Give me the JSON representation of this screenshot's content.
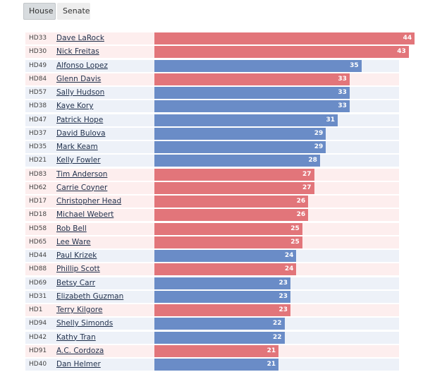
{
  "tabs": {
    "house": "House",
    "senate": "Senate",
    "active": "house"
  },
  "colors": {
    "republican": "#e2757a",
    "democrat": "#6a8cc7",
    "republican_row": "#fdeeee",
    "democrat_row": "#edf1f8"
  },
  "chart_data": {
    "type": "bar",
    "orientation": "horizontal",
    "title": "",
    "xlim": [
      0,
      45
    ],
    "series": [
      {
        "district": "HD33",
        "name": "Dave LaRock",
        "value": 44,
        "party": "R"
      },
      {
        "district": "HD30",
        "name": "Nick Freitas",
        "value": 43,
        "party": "R"
      },
      {
        "district": "HD49",
        "name": "Alfonso Lopez",
        "value": 35,
        "party": "D"
      },
      {
        "district": "HD84",
        "name": "Glenn Davis",
        "value": 33,
        "party": "R"
      },
      {
        "district": "HD57",
        "name": "Sally Hudson",
        "value": 33,
        "party": "D"
      },
      {
        "district": "HD38",
        "name": "Kaye Kory",
        "value": 33,
        "party": "D"
      },
      {
        "district": "HD47",
        "name": "Patrick Hope",
        "value": 31,
        "party": "D"
      },
      {
        "district": "HD37",
        "name": "David Bulova",
        "value": 29,
        "party": "D"
      },
      {
        "district": "HD35",
        "name": "Mark Keam",
        "value": 29,
        "party": "D"
      },
      {
        "district": "HD21",
        "name": "Kelly Fowler",
        "value": 28,
        "party": "D"
      },
      {
        "district": "HD83",
        "name": "Tim Anderson",
        "value": 27,
        "party": "R"
      },
      {
        "district": "HD62",
        "name": "Carrie Coyner",
        "value": 27,
        "party": "R"
      },
      {
        "district": "HD17",
        "name": "Christopher Head",
        "value": 26,
        "party": "R"
      },
      {
        "district": "HD18",
        "name": "Michael Webert",
        "value": 26,
        "party": "R"
      },
      {
        "district": "HD58",
        "name": "Rob Bell",
        "value": 25,
        "party": "R"
      },
      {
        "district": "HD65",
        "name": "Lee Ware",
        "value": 25,
        "party": "R"
      },
      {
        "district": "HD44",
        "name": "Paul Krizek",
        "value": 24,
        "party": "D"
      },
      {
        "district": "HD88",
        "name": "Phillip Scott",
        "value": 24,
        "party": "R"
      },
      {
        "district": "HD69",
        "name": "Betsy Carr",
        "value": 23,
        "party": "D"
      },
      {
        "district": "HD31",
        "name": "Elizabeth Guzman",
        "value": 23,
        "party": "D"
      },
      {
        "district": "HD1",
        "name": "Terry Kilgore",
        "value": 23,
        "party": "R"
      },
      {
        "district": "HD94",
        "name": "Shelly Simonds",
        "value": 22,
        "party": "D"
      },
      {
        "district": "HD42",
        "name": "Kathy Tran",
        "value": 22,
        "party": "D"
      },
      {
        "district": "HD91",
        "name": "A.C. Cordoza",
        "value": 21,
        "party": "R"
      },
      {
        "district": "HD40",
        "name": "Dan Helmer",
        "value": 21,
        "party": "D"
      }
    ]
  }
}
